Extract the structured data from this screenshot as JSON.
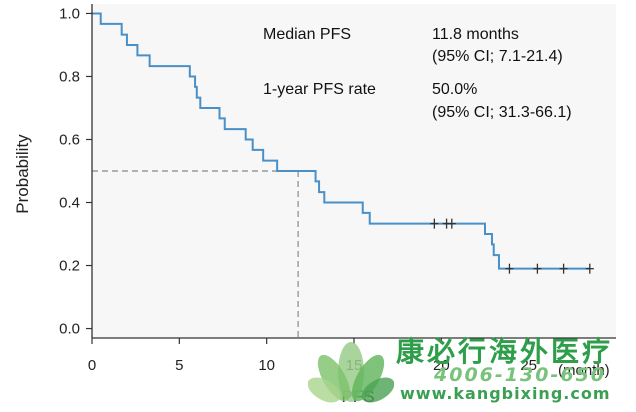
{
  "chart_data": {
    "type": "line",
    "subtype": "kaplan-meier step curve",
    "xlabel": "PFS",
    "ylabel": "Probability",
    "xunit": "(month)",
    "xlim": [
      0,
      30
    ],
    "ylim": [
      -0.03,
      1.03
    ],
    "xticks": [
      "0",
      "5",
      "10",
      "15",
      "20",
      "25"
    ],
    "yticks": [
      "0.0",
      "0.2",
      "0.4",
      "0.6",
      "0.8",
      "1.0"
    ],
    "grid": false,
    "color": "#4a90c8",
    "series": [
      {
        "steps": [
          [
            0,
            1.0
          ],
          [
            0.5,
            0.967
          ],
          [
            1.7,
            0.933
          ],
          [
            2.0,
            0.9
          ],
          [
            2.6,
            0.867
          ],
          [
            3.3,
            0.833
          ],
          [
            5.6,
            0.8
          ],
          [
            5.9,
            0.767
          ],
          [
            6.0,
            0.733
          ],
          [
            6.2,
            0.7
          ],
          [
            7.3,
            0.667
          ],
          [
            7.6,
            0.633
          ],
          [
            8.8,
            0.6
          ],
          [
            9.2,
            0.567
          ],
          [
            9.8,
            0.533
          ],
          [
            10.6,
            0.5
          ],
          [
            11.8,
            0.5
          ],
          [
            12.8,
            0.467
          ],
          [
            13.0,
            0.433
          ],
          [
            13.3,
            0.4
          ],
          [
            15.5,
            0.367
          ],
          [
            15.9,
            0.333
          ],
          [
            22.5,
            0.3
          ],
          [
            22.9,
            0.267
          ],
          [
            23.0,
            0.233
          ],
          [
            23.3,
            0.19
          ],
          [
            28.5,
            0.19
          ]
        ],
        "censored": [
          [
            19.6,
            0.333
          ],
          [
            20.3,
            0.333
          ],
          [
            20.6,
            0.333
          ],
          [
            23.9,
            0.19
          ],
          [
            25.5,
            0.19
          ],
          [
            27.0,
            0.19
          ],
          [
            28.5,
            0.19
          ]
        ]
      }
    ],
    "reference": {
      "x": 11.8,
      "y": 0.5
    },
    "annotations": [
      {
        "label": "Median PFS",
        "value": "11.8 months",
        "ci": "(95% CI; 7.1-21.4)"
      },
      {
        "label": "1-year PFS rate",
        "value": "50.0%",
        "ci": "(95% CI; 31.3-66.1)"
      }
    ]
  },
  "watermark": {
    "chinese": "康必行海外医疗",
    "phone": "4006-130-650",
    "url": "www.kangbixing.com"
  }
}
